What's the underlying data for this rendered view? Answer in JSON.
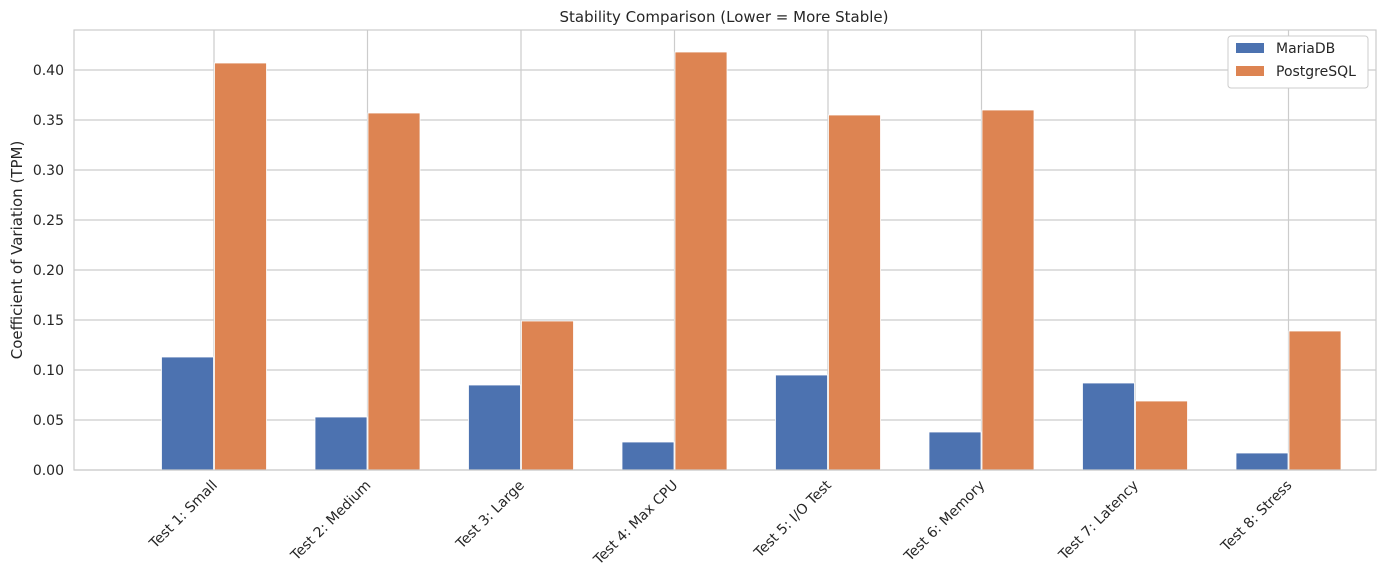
{
  "chart_data": {
    "type": "bar",
    "title": "Stability Comparison (Lower = More Stable)",
    "xlabel": "",
    "ylabel": "Coefficient of Variation (TPM)",
    "categories": [
      "Test 1: Small",
      "Test 2: Medium",
      "Test 3: Large",
      "Test 4: Max CPU",
      "Test 5: I/O Test",
      "Test 6: Memory",
      "Test 7: Latency",
      "Test 8: Stress"
    ],
    "series": [
      {
        "name": "MariaDB",
        "color": "#4c72b0",
        "values": [
          0.113,
          0.053,
          0.085,
          0.028,
          0.095,
          0.038,
          0.087,
          0.017
        ]
      },
      {
        "name": "PostgreSQL",
        "color": "#dd8452",
        "values": [
          0.407,
          0.357,
          0.149,
          0.418,
          0.355,
          0.36,
          0.069,
          0.139
        ]
      }
    ],
    "ylim": [
      0,
      0.44
    ],
    "yticks": [
      "0.00",
      "0.05",
      "0.10",
      "0.15",
      "0.20",
      "0.25",
      "0.30",
      "0.35",
      "0.40"
    ],
    "grid": true,
    "legend_position": "top-right"
  }
}
